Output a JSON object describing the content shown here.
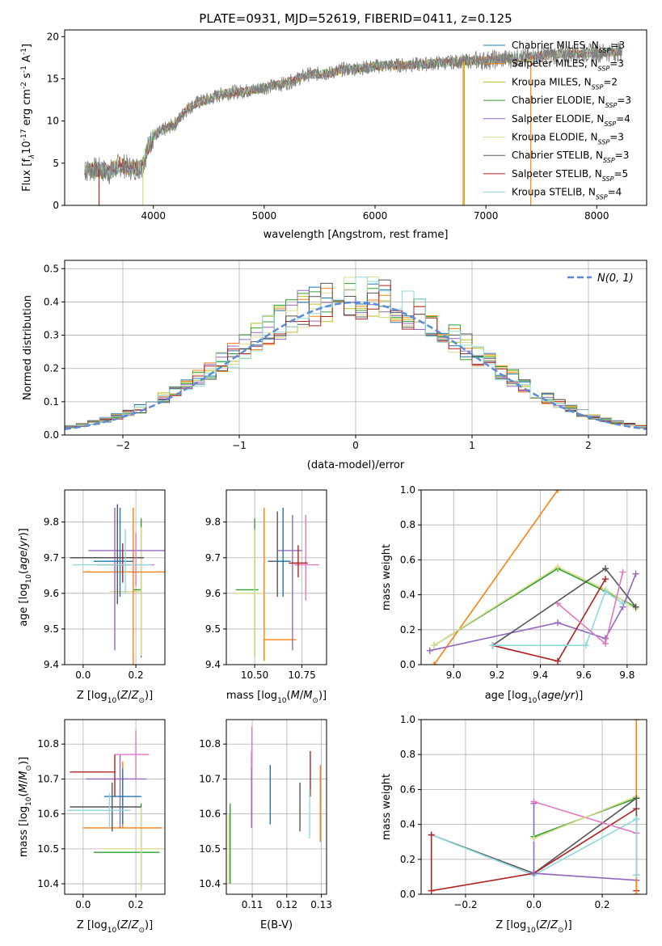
{
  "figure": {
    "title": "PLATE=0931, MJD=52619, FIBERID=0411, z=0.125"
  },
  "colors": {
    "chabrier_miles": "#1f77b4",
    "salpeter_miles": "#ff7f0e",
    "kroupa_miles": "#bcbd22",
    "chabrier_elodie": "#2ca02c",
    "salpeter_elodie": "#9467bd",
    "kroupa_elodie": "#dbdb8d",
    "chabrier_stelib": "#555555",
    "salpeter_stelib": "#b22222",
    "kroupa_stelib": "#8ed9de",
    "pink": "#e377c2",
    "gray": "#7f7f7f",
    "normal": "#5b8bd8"
  },
  "chart_data": [
    {
      "id": "spectrum",
      "type": "line",
      "xlabel": "wavelength [Angstrom, rest frame]",
      "ylabel_parts": [
        "Flux [f",
        "λ",
        "10",
        "-17",
        " erg cm",
        "-2",
        " s",
        "-1",
        " A",
        "-1",
        "]"
      ],
      "xlim": [
        3200,
        8450
      ],
      "ylim": [
        0,
        20.8
      ],
      "xticks": [
        4000,
        5000,
        6000,
        7000,
        8000
      ],
      "yticks": [
        0,
        5,
        10,
        15,
        20
      ],
      "legend_position": "top-right",
      "legend": [
        {
          "text": "Chabrier MILES, N",
          "sub": "SSP",
          "tail": "=3",
          "color": "#1f77b4"
        },
        {
          "text": "Salpeter MILES, N",
          "sub": "SSP",
          "tail": "=3",
          "color": "#ff7f0e"
        },
        {
          "text": "Kroupa MILES, N",
          "sub": "SSP",
          "tail": "=2",
          "color": "#bcbd22"
        },
        {
          "text": "Chabrier ELODIE, N",
          "sub": "SSP",
          "tail": "=3",
          "color": "#2ca02c"
        },
        {
          "text": "Salpeter ELODIE, N",
          "sub": "SSP",
          "tail": "=4",
          "color": "#9467bd"
        },
        {
          "text": "Kroupa ELODIE, N",
          "sub": "SSP",
          "tail": "=3",
          "color": "#dbdb8d"
        },
        {
          "text": "Chabrier STELIB, N",
          "sub": "SSP",
          "tail": "=3",
          "color": "#555555"
        },
        {
          "text": "Salpeter STELIB, N",
          "sub": "SSP",
          "tail": "=5",
          "color": "#b22222"
        },
        {
          "text": "Kroupa STELIB, N",
          "sub": "SSP",
          "tail": "=4",
          "color": "#8ed9de"
        }
      ],
      "spectrum_points": [
        [
          3380,
          4.1
        ],
        [
          3500,
          4.3
        ],
        [
          3600,
          3.9
        ],
        [
          3700,
          4.8
        ],
        [
          3800,
          4.4
        ],
        [
          3900,
          4.5
        ],
        [
          3950,
          6.8
        ],
        [
          4000,
          8.2
        ],
        [
          4100,
          9.0
        ],
        [
          4200,
          9.7
        ],
        [
          4300,
          11.4
        ],
        [
          4400,
          12.2
        ],
        [
          4500,
          12.6
        ],
        [
          4600,
          13.1
        ],
        [
          4700,
          13.4
        ],
        [
          4800,
          13.5
        ],
        [
          4900,
          13.7
        ],
        [
          5000,
          14.0
        ],
        [
          5100,
          14.2
        ],
        [
          5200,
          14.5
        ],
        [
          5300,
          15.0
        ],
        [
          5400,
          15.5
        ],
        [
          5500,
          15.6
        ],
        [
          5600,
          15.7
        ],
        [
          5700,
          16.1
        ],
        [
          5800,
          16.2
        ],
        [
          5900,
          16.3
        ],
        [
          6000,
          16.5
        ],
        [
          6200,
          16.6
        ],
        [
          6400,
          16.7
        ],
        [
          6600,
          16.9
        ],
        [
          6800,
          17.1
        ],
        [
          7000,
          17.2
        ],
        [
          7200,
          17.4
        ],
        [
          7400,
          17.6
        ],
        [
          7600,
          17.9
        ],
        [
          7800,
          18.0
        ],
        [
          8000,
          18.1
        ],
        [
          8200,
          18.2
        ]
      ],
      "model_dips": [
        {
          "x": 3510,
          "color": "#b22222"
        },
        {
          "x": 3905,
          "color": "#dbdb8d"
        },
        {
          "x": 6795,
          "color": "#ff7f0e"
        },
        {
          "x": 6805,
          "color": "#bcbd22"
        },
        {
          "x": 7405,
          "color": "#ff7f0e"
        }
      ]
    },
    {
      "id": "residuals",
      "type": "histogram",
      "xlabel": "(data-model)/error",
      "ylabel": "Normed distribution",
      "xlim": [
        -2.5,
        2.5
      ],
      "ylim": [
        0,
        0.525
      ],
      "xticks": [
        -2,
        -1,
        0,
        1,
        2
      ],
      "yticks": [
        0.0,
        0.1,
        0.2,
        0.3,
        0.4,
        0.5
      ],
      "grid": true,
      "legend_position": "top-right",
      "legend_text": "N(0, 1)",
      "bin_width": 0.1,
      "bin_start": -2.5,
      "bins": 50
    },
    {
      "id": "age_vs_Z",
      "type": "errorbar",
      "xlabel": "Z [log10(Z/Z⊙)]",
      "ylabel": "age [log10(age/yr)]",
      "xlim": [
        -0.07,
        0.31
      ],
      "ylim": [
        9.4,
        9.89
      ],
      "xticks": [
        0.0,
        0.2
      ],
      "yticks": [
        9.4,
        9.5,
        9.6,
        9.7,
        9.8
      ],
      "grid": true,
      "points": [
        {
          "x": 0.22,
          "y": 9.61,
          "xerr": [
            0.03,
            0.0
          ],
          "yerr": [
            0.19,
            0.2
          ],
          "color": "#2ca02c"
        },
        {
          "x": 0.22,
          "y": 9.605,
          "xerr": [
            0.12,
            0.0
          ],
          "yerr": [
            0.18,
            0.18
          ],
          "color": "#dbdb8d"
        },
        {
          "x": 0.19,
          "y": 9.66,
          "xerr": [
            0.19,
            0.12
          ],
          "yerr": [
            0.28,
            0.18
          ],
          "color": "#ff7f0e"
        },
        {
          "x": 0.12,
          "y": 9.72,
          "xerr": [
            0.1,
            0.2
          ],
          "yerr": [
            0.28,
            0.12
          ],
          "color": "#9467bd"
        },
        {
          "x": 0.13,
          "y": 9.7,
          "xerr": [
            0.18,
            0.1
          ],
          "yerr": [
            0.13,
            0.15
          ],
          "color": "#555555"
        },
        {
          "x": 0.14,
          "y": 9.69,
          "xerr": [
            0.1,
            0.05
          ],
          "yerr": [
            0.1,
            0.15
          ],
          "color": "#1f77b4"
        },
        {
          "x": 0.2,
          "y": 9.68,
          "xerr": [
            0.05,
            0.07
          ],
          "yerr": [
            0.06,
            0.09
          ],
          "color": "#e377c2"
        },
        {
          "x": 0.15,
          "y": 9.68,
          "xerr": [
            0.1,
            0.02
          ],
          "yerr": [
            0.05,
            0.06
          ],
          "color": "#b22222"
        },
        {
          "x": 0.16,
          "y": 9.68,
          "xerr": [
            0.2,
            0.1
          ],
          "yerr": [
            0.08,
            0.1
          ],
          "color": "#8ed9de"
        }
      ]
    },
    {
      "id": "age_vs_mass",
      "type": "errorbar",
      "xlabel": "mass [log10(M/M⊙)]",
      "ylabel": "",
      "xlim": [
        10.35,
        10.88
      ],
      "ylim": [
        9.4,
        9.89
      ],
      "xticks": [
        10.5,
        10.75
      ],
      "yticks": [
        9.4,
        9.5,
        9.6,
        9.7,
        9.8
      ],
      "grid": true,
      "points": [
        {
          "x": 10.5,
          "y": 9.61,
          "xerr": [
            0.1,
            0.02
          ],
          "yerr": [
            0.19,
            0.2
          ],
          "color": "#2ca02c"
        },
        {
          "x": 10.5,
          "y": 9.6,
          "xerr": [
            0.1,
            0.05
          ],
          "yerr": [
            0.18,
            0.18
          ],
          "color": "#dbdb8d"
        },
        {
          "x": 10.55,
          "y": 9.47,
          "xerr": [
            0.0,
            0.17
          ],
          "yerr": [
            0.06,
            0.37
          ],
          "color": "#ff7f0e"
        },
        {
          "x": 10.7,
          "y": 9.72,
          "xerr": [
            0.08,
            0.05
          ],
          "yerr": [
            0.28,
            0.1
          ],
          "color": "#9467bd"
        },
        {
          "x": 10.62,
          "y": 9.69,
          "xerr": [
            0.05,
            0.05
          ],
          "yerr": [
            0.1,
            0.14
          ],
          "color": "#555555"
        },
        {
          "x": 10.65,
          "y": 9.69,
          "xerr": [
            0.04,
            0.04
          ],
          "yerr": [
            0.1,
            0.15
          ],
          "color": "#1f77b4"
        },
        {
          "x": 10.77,
          "y": 9.68,
          "xerr": [
            0.06,
            0.07
          ],
          "yerr": [
            0.1,
            0.14
          ],
          "color": "#e377c2"
        },
        {
          "x": 10.73,
          "y": 9.685,
          "xerr": [
            0.05,
            0.05
          ],
          "yerr": [
            0.04,
            0.05
          ],
          "color": "#b22222"
        }
      ]
    },
    {
      "id": "weight_vs_age",
      "type": "line",
      "xlabel": "age [log10(age/yr)]",
      "ylabel": "mass weight",
      "xlim": [
        8.85,
        9.89
      ],
      "ylim": [
        0.0,
        1.0
      ],
      "xticks": [
        9.0,
        9.2,
        9.4,
        9.6,
        9.8
      ],
      "yticks": [
        0.0,
        0.2,
        0.4,
        0.6,
        0.8,
        1.0
      ],
      "grid": true,
      "series": [
        {
          "color": "#ff7f0e",
          "x": [
            8.91,
            9.48
          ],
          "y": [
            0.0,
            1.0
          ]
        },
        {
          "color": "#2ca02c",
          "x": [
            8.91,
            9.48,
            9.7,
            9.84
          ],
          "y": [
            0.11,
            0.55,
            0.42,
            0.33
          ]
        },
        {
          "color": "#dbdb8d",
          "x": [
            8.91,
            9.48,
            9.7,
            9.84
          ],
          "y": [
            0.11,
            0.56,
            0.43,
            0.32
          ]
        },
        {
          "color": "#9467bd",
          "x": [
            8.89,
            9.48,
            9.7,
            9.78,
            9.84
          ],
          "y": [
            0.08,
            0.24,
            0.15,
            0.33,
            0.52
          ]
        },
        {
          "color": "#555555",
          "x": [
            9.18,
            9.7,
            9.84
          ],
          "y": [
            0.11,
            0.55,
            0.33
          ]
        },
        {
          "color": "#b22222",
          "x": [
            9.18,
            9.48,
            9.7
          ],
          "y": [
            0.11,
            0.02,
            0.49
          ]
        },
        {
          "color": "#8ed9de",
          "x": [
            9.18,
            9.61,
            9.7,
            9.78
          ],
          "y": [
            0.11,
            0.11,
            0.42,
            0.35
          ]
        },
        {
          "color": "#e377c2",
          "x": [
            9.48,
            9.7,
            9.78
          ],
          "y": [
            0.35,
            0.12,
            0.53
          ]
        }
      ]
    },
    {
      "id": "mass_vs_Z",
      "type": "errorbar",
      "xlabel": "Z [log10(Z/Z⊙)]",
      "ylabel": "mass [log10(M/M⊙)]",
      "xlim": [
        -0.07,
        0.31
      ],
      "ylim": [
        10.37,
        10.87
      ],
      "xticks": [
        0.0,
        0.2
      ],
      "yticks": [
        10.4,
        10.5,
        10.6,
        10.7,
        10.8
      ],
      "grid": true,
      "points": [
        {
          "x": 0.22,
          "y": 10.49,
          "xerr": [
            0.18,
            0.07
          ],
          "yerr": [
            0.1,
            0.14
          ],
          "color": "#2ca02c"
        },
        {
          "x": 0.22,
          "y": 10.5,
          "xerr": [
            0.15,
            0.08
          ],
          "yerr": [
            0.12,
            0.12
          ],
          "color": "#dbdb8d"
        },
        {
          "x": 0.15,
          "y": 10.56,
          "xerr": [
            0.15,
            0.15
          ],
          "yerr": [
            0.0,
            0.19
          ],
          "color": "#ff7f0e"
        },
        {
          "x": 0.14,
          "y": 10.7,
          "xerr": [
            0.13,
            0.1
          ],
          "yerr": [
            0.14,
            0.07
          ],
          "color": "#9467bd"
        },
        {
          "x": 0.11,
          "y": 10.62,
          "xerr": [
            0.16,
            0.11
          ],
          "yerr": [
            0.07,
            0.07
          ],
          "color": "#555555"
        },
        {
          "x": 0.15,
          "y": 10.65,
          "xerr": [
            0.07,
            0.07
          ],
          "yerr": [
            0.08,
            0.08
          ],
          "color": "#1f77b4"
        },
        {
          "x": 0.2,
          "y": 10.77,
          "xerr": [
            0.08,
            0.05
          ],
          "yerr": [
            0.07,
            0.07
          ],
          "color": "#e377c2"
        },
        {
          "x": 0.12,
          "y": 10.72,
          "xerr": [
            0.17,
            0.0
          ],
          "yerr": [
            0.07,
            0.05
          ],
          "color": "#b22222"
        },
        {
          "x": 0.1,
          "y": 10.61,
          "xerr": [
            0.16,
            0.08
          ],
          "yerr": [
            0.05,
            0.05
          ],
          "color": "#8ed9de"
        }
      ]
    },
    {
      "id": "mass_vs_ebv",
      "type": "errorbar",
      "xlabel": "E(B-V)",
      "ylabel": "",
      "xlim": [
        0.1025,
        0.1315
      ],
      "ylim": [
        10.37,
        10.87
      ],
      "xticks": [
        0.11,
        0.12,
        0.13
      ],
      "yticks": [
        10.4,
        10.5,
        10.6,
        10.7,
        10.8
      ],
      "grid": true,
      "points": [
        {
          "x": 0.1036,
          "y": 10.5,
          "xerr": [
            0,
            0
          ],
          "yerr": [
            0.1,
            0.13
          ],
          "color": "#2ca02c"
        },
        {
          "x": 0.1032,
          "y": 10.5,
          "xerr": [
            0,
            0
          ],
          "yerr": [
            0.1,
            0.1
          ],
          "color": "#dbdb8d"
        },
        {
          "x": 0.1098,
          "y": 10.67,
          "xerr": [
            0,
            0
          ],
          "yerr": [
            0.11,
            0.11
          ],
          "color": "#9467bd"
        },
        {
          "x": 0.1099,
          "y": 10.77,
          "xerr": [
            0,
            0
          ],
          "yerr": [
            0.04,
            0.08
          ],
          "color": "#e377c2"
        },
        {
          "x": 0.1152,
          "y": 10.65,
          "xerr": [
            0,
            0
          ],
          "yerr": [
            0.08,
            0.09
          ],
          "color": "#1f77b4"
        },
        {
          "x": 0.1238,
          "y": 10.62,
          "xerr": [
            0,
            0
          ],
          "yerr": [
            0.07,
            0.07
          ],
          "color": "#555555"
        },
        {
          "x": 0.1268,
          "y": 10.72,
          "xerr": [
            0,
            0
          ],
          "yerr": [
            0.07,
            0.06
          ],
          "color": "#b22222"
        },
        {
          "x": 0.1266,
          "y": 10.6,
          "xerr": [
            0,
            0
          ],
          "yerr": [
            0.07,
            0.07
          ],
          "color": "#8ed9de"
        },
        {
          "x": 0.1297,
          "y": 10.62,
          "xerr": [
            0,
            0
          ],
          "yerr": [
            0.1,
            0.12
          ],
          "color": "#ff7f0e"
        }
      ]
    },
    {
      "id": "weight_vs_Z",
      "type": "line",
      "xlabel": "Z [log10(Z/Z⊙)]",
      "ylabel": "mass weight",
      "xlim": [
        -0.33,
        0.33
      ],
      "ylim": [
        0.0,
        1.0
      ],
      "xticks": [
        -0.2,
        0.0,
        0.2
      ],
      "yticks": [
        0.0,
        0.2,
        0.4,
        0.6,
        0.8,
        1.0
      ],
      "grid": true,
      "series": [
        {
          "color": "#555555",
          "x": [
            -0.3,
            0.0,
            0.3
          ],
          "y": [
            0.34,
            0.12,
            0.55
          ]
        },
        {
          "color": "#8ed9de",
          "x": [
            -0.3,
            0.0,
            0.3
          ],
          "y": [
            0.34,
            0.11,
            0.43
          ]
        },
        {
          "color": "#b22222",
          "x": [
            -0.3,
            -0.3,
            0.0,
            0.3,
            0.3
          ],
          "y": [
            0.34,
            0.02,
            0.12,
            0.49,
            0.02
          ]
        },
        {
          "color": "#9467bd",
          "x": [
            0.0,
            0.0,
            0.3
          ],
          "y": [
            0.52,
            0.12,
            0.08
          ]
        },
        {
          "color": "#e377c2",
          "x": [
            0.0,
            0.3
          ],
          "y": [
            0.53,
            0.35
          ]
        },
        {
          "color": "#2ca02c",
          "x": [
            0.0,
            0.3
          ],
          "y": [
            0.33,
            0.55
          ]
        },
        {
          "color": "#dbdb8d",
          "x": [
            0.0,
            0.3
          ],
          "y": [
            0.32,
            0.56
          ]
        },
        {
          "color": "#ff7f0e",
          "x": [
            0.3,
            0.3
          ],
          "y": [
            0.0,
            1.0
          ]
        },
        {
          "color": "#555555",
          "x": [
            0.3,
            0.3
          ],
          "y": [
            0.11,
            0.55
          ]
        },
        {
          "color": "#8ed9de",
          "x": [
            0.3,
            0.3
          ],
          "y": [
            0.11,
            0.43
          ]
        }
      ]
    }
  ]
}
